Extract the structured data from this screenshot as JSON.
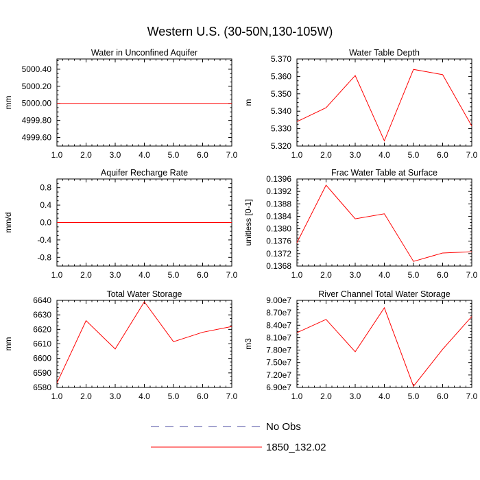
{
  "figure_title": "Western U.S. (30-50N,130-105W)",
  "legend": [
    {
      "label": "No Obs",
      "color": "#4a4aa0",
      "style": "dashed"
    },
    {
      "label": "1850_132.02",
      "color": "#ff0000",
      "style": "solid"
    }
  ],
  "chart_data": [
    {
      "type": "line",
      "title": "Water in Unconfined Aquifer",
      "ylabel": "mm",
      "x": [
        1,
        2,
        3,
        4,
        5,
        6,
        7
      ],
      "xlim": [
        1,
        7
      ],
      "ylim": [
        4999.5,
        5000.52
      ],
      "xticks": [
        "1.0",
        "2.0",
        "3.0",
        "4.0",
        "5.0",
        "6.0",
        "7.0"
      ],
      "yticks": [
        {
          "value": 4999.6,
          "label": "4999.60"
        },
        {
          "value": 4999.8,
          "label": "4999.80"
        },
        {
          "value": 5000.0,
          "label": "5000.00"
        },
        {
          "value": 5000.2,
          "label": "5000.20"
        },
        {
          "value": 5000.4,
          "label": "5000.40"
        }
      ],
      "series": [
        {
          "name": "1850_132.02",
          "values": [
            5000.0,
            5000.0,
            5000.0,
            5000.0,
            5000.0,
            5000.0,
            5000.0
          ]
        }
      ]
    },
    {
      "type": "line",
      "title": "Water Table Depth",
      "ylabel": "m",
      "x": [
        1,
        2,
        3,
        4,
        5,
        6,
        7
      ],
      "xlim": [
        1,
        7
      ],
      "ylim": [
        5.32,
        5.37
      ],
      "xticks": [
        "1.0",
        "2.0",
        "3.0",
        "4.0",
        "5.0",
        "6.0",
        "7.0"
      ],
      "yticks": [
        {
          "value": 5.32,
          "label": "5.320"
        },
        {
          "value": 5.33,
          "label": "5.330"
        },
        {
          "value": 5.34,
          "label": "5.340"
        },
        {
          "value": 5.35,
          "label": "5.350"
        },
        {
          "value": 5.36,
          "label": "5.360"
        },
        {
          "value": 5.37,
          "label": "5.370"
        }
      ],
      "series": [
        {
          "name": "1850_132.02",
          "values": [
            5.334,
            5.342,
            5.3605,
            5.323,
            5.364,
            5.361,
            5.3315
          ]
        }
      ]
    },
    {
      "type": "line",
      "title": "Aquifer Recharge Rate",
      "ylabel": "mm/d",
      "x": [
        1,
        2,
        3,
        4,
        5,
        6,
        7
      ],
      "xlim": [
        1,
        7
      ],
      "ylim": [
        -1.0,
        1.0
      ],
      "xticks": [
        "1.0",
        "2.0",
        "3.0",
        "4.0",
        "5.0",
        "6.0",
        "7.0"
      ],
      "yticks": [
        {
          "value": -0.8,
          "label": "-0.8"
        },
        {
          "value": -0.4,
          "label": "-0.4"
        },
        {
          "value": 0.0,
          "label": "0.0"
        },
        {
          "value": 0.4,
          "label": "0.4"
        },
        {
          "value": 0.8,
          "label": "0.8"
        }
      ],
      "series": [
        {
          "name": "1850_132.02",
          "values": [
            0,
            0,
            0,
            0,
            0,
            0,
            0
          ]
        }
      ]
    },
    {
      "type": "line",
      "title": "Frac Water Table at Surface",
      "ylabel": "unitless [0-1]",
      "x": [
        1,
        2,
        3,
        4,
        5,
        6,
        7
      ],
      "xlim": [
        1,
        7
      ],
      "ylim": [
        0.1368,
        0.1396
      ],
      "xticks": [
        "1.0",
        "2.0",
        "3.0",
        "4.0",
        "5.0",
        "6.0",
        "7.0"
      ],
      "yticks": [
        {
          "value": 0.1368,
          "label": "0.1368"
        },
        {
          "value": 0.1372,
          "label": "0.1372"
        },
        {
          "value": 0.1376,
          "label": "0.1376"
        },
        {
          "value": 0.138,
          "label": "0.1380"
        },
        {
          "value": 0.1384,
          "label": "0.1384"
        },
        {
          "value": 0.1388,
          "label": "0.1388"
        },
        {
          "value": 0.1392,
          "label": "0.1392"
        },
        {
          "value": 0.1396,
          "label": "0.1396"
        }
      ],
      "series": [
        {
          "name": "1850_132.02",
          "values": [
            0.13755,
            0.1394,
            0.13832,
            0.13848,
            0.13695,
            0.13722,
            0.13726
          ]
        }
      ]
    },
    {
      "type": "line",
      "title": "Total Water Storage",
      "ylabel": "mm",
      "x": [
        1,
        2,
        3,
        4,
        5,
        6,
        7
      ],
      "xlim": [
        1,
        7
      ],
      "ylim": [
        6580,
        6640
      ],
      "xticks": [
        "1.0",
        "2.0",
        "3.0",
        "4.0",
        "5.0",
        "6.0",
        "7.0"
      ],
      "yticks": [
        {
          "value": 6580,
          "label": "6580"
        },
        {
          "value": 6590,
          "label": "6590"
        },
        {
          "value": 6600,
          "label": "6600"
        },
        {
          "value": 6610,
          "label": "6610"
        },
        {
          "value": 6620,
          "label": "6620"
        },
        {
          "value": 6630,
          "label": "6630"
        },
        {
          "value": 6640,
          "label": "6640"
        }
      ],
      "series": [
        {
          "name": "1850_132.02",
          "values": [
            6583,
            6626,
            6606.5,
            6639,
            6611.5,
            6618,
            6622
          ]
        }
      ]
    },
    {
      "type": "line",
      "title": "River Channel Total Water Storage",
      "ylabel": "m3",
      "x": [
        1,
        2,
        3,
        4,
        5,
        6,
        7
      ],
      "xlim": [
        1,
        7
      ],
      "ylim": [
        69000000,
        90000000
      ],
      "xticks": [
        "1.0",
        "2.0",
        "3.0",
        "4.0",
        "5.0",
        "6.0",
        "7.0"
      ],
      "yticks": [
        {
          "value": 69000000,
          "label": "6.90e7"
        },
        {
          "value": 72000000,
          "label": "7.20e7"
        },
        {
          "value": 75000000,
          "label": "7.50e7"
        },
        {
          "value": 78000000,
          "label": "7.80e7"
        },
        {
          "value": 81000000,
          "label": "8.10e7"
        },
        {
          "value": 84000000,
          "label": "8.40e7"
        },
        {
          "value": 87000000,
          "label": "8.70e7"
        },
        {
          "value": 90000000,
          "label": "9.00e7"
        }
      ],
      "series": [
        {
          "name": "1850_132.02",
          "values": [
            82200000,
            85400000,
            77600000,
            88200000,
            69300000,
            78200000,
            86100000
          ]
        }
      ]
    }
  ]
}
